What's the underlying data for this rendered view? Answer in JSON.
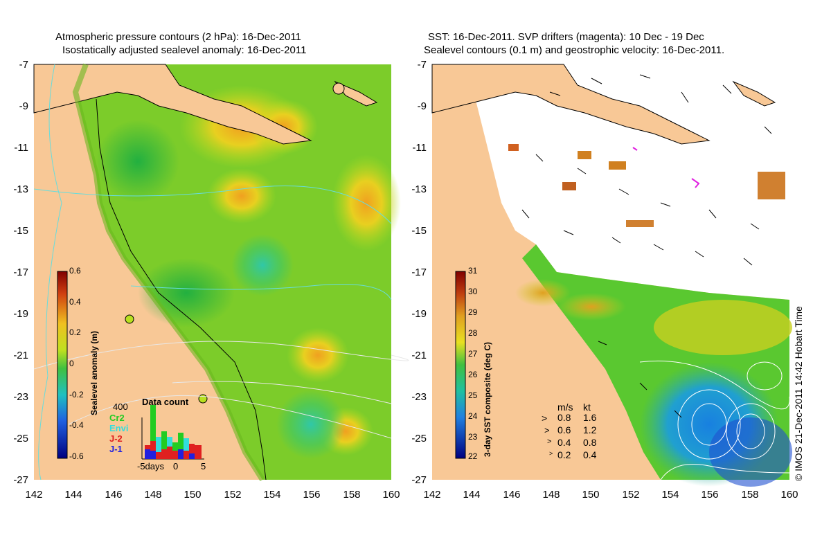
{
  "left_panel": {
    "title_line1": "Atmospheric pressure contours (2 hPa): 16-Dec-2011",
    "title_line2": "Isostatically adjusted sealevel anomaly: 16-Dec-2011",
    "colorbar_label": "Sealevel anomaly (m)",
    "colorbar_ticks": [
      "0.6",
      "0.4",
      "0.2",
      "0",
      "-0.2",
      "-0.4",
      "-0.6"
    ],
    "inset": {
      "title": "Data count",
      "ymax_label": "400",
      "legend": [
        {
          "label": "Cr2",
          "color": "#22cc22"
        },
        {
          "label": "Envi",
          "color": "#33dddd"
        },
        {
          "label": "J-2",
          "color": "#e02020"
        },
        {
          "label": "J-1",
          "color": "#2020e0"
        }
      ],
      "x_labels": [
        "-5days",
        "0",
        "5"
      ]
    }
  },
  "right_panel": {
    "title_line1": "SST: 16-Dec-2011. SVP drifters (magenta): 10 Dec - 19 Dec",
    "title_line2": "Sealevel contours (0.1 m) and geostrophic velocity: 16-Dec-2011.",
    "colorbar_label": "3-day SST composite (deg C)",
    "colorbar_ticks": [
      "31",
      "30",
      "29",
      "28",
      "27",
      "26",
      "25",
      "24",
      "23",
      "22"
    ],
    "velocity_legend": {
      "header_ms": "m/s",
      "header_kt": "kt",
      "rows": [
        {
          "ms": "0.8",
          "kt": "1.6"
        },
        {
          "ms": "0.6",
          "kt": "1.2"
        },
        {
          "ms": "0.4",
          "kt": "0.8"
        },
        {
          "ms": "0.2",
          "kt": "0.4"
        }
      ]
    }
  },
  "axes": {
    "y_ticks": [
      "-7",
      "-9",
      "-11",
      "-13",
      "-15",
      "-17",
      "-19",
      "-21",
      "-23",
      "-25",
      "-27"
    ],
    "x_ticks": [
      "142",
      "144",
      "146",
      "148",
      "150",
      "152",
      "154",
      "156",
      "158",
      "160"
    ]
  },
  "credit": "© IMOS 21-Dec-2011 14:42 Hobart Time",
  "colors": {
    "land": "#f8c896",
    "ocean_green": "#66cc22",
    "ocean_yellow": "#d8e020",
    "sst_white": "#ffffff",
    "sst_blue": "#2080e0"
  }
}
